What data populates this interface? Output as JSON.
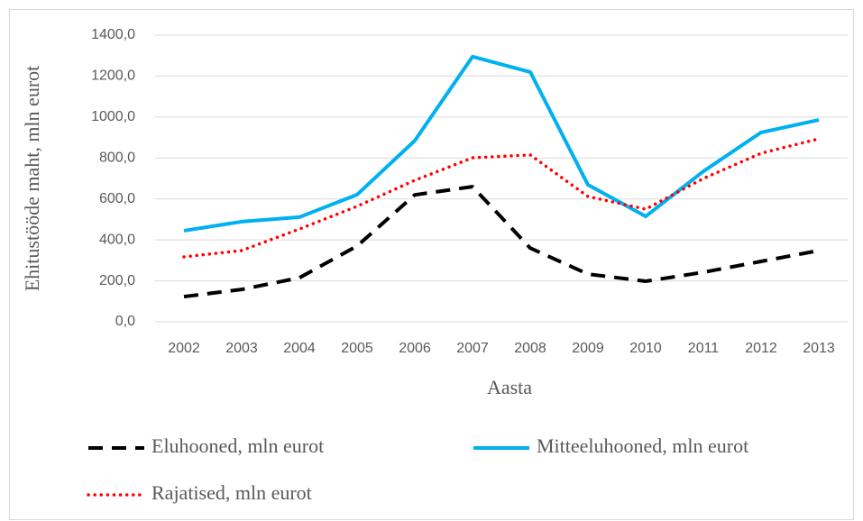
{
  "chart_data": {
    "type": "line",
    "x_label": "Aasta",
    "y_label": "Ehitustööde maht, mln eurot",
    "x": [
      2002,
      2003,
      2004,
      2005,
      2006,
      2007,
      2008,
      2009,
      2010,
      2011,
      2012,
      2013
    ],
    "series": [
      {
        "name": "Eluhooned, mln eurot",
        "color": "#000000",
        "style": "dashed",
        "values": [
          123,
          158,
          215,
          370,
          620,
          660,
          360,
          233,
          198,
          242,
          295,
          348
        ]
      },
      {
        "name": "Mitteeluhooned, mln eurot",
        "color": "#00b0f0",
        "style": "solid",
        "values": [
          445,
          489,
          511,
          621,
          885,
          1295,
          1220,
          669,
          515,
          735,
          925,
          986
        ]
      },
      {
        "name": "Rajatised, mln eurot",
        "color": "#ff0000",
        "style": "dotted",
        "values": [
          317,
          348,
          453,
          564,
          691,
          801,
          815,
          612,
          550,
          700,
          823,
          894
        ]
      }
    ],
    "ylim": [
      0,
      1400
    ],
    "yticks": [
      {
        "value": 0,
        "label": "0,0"
      },
      {
        "value": 200,
        "label": "200,0"
      },
      {
        "value": 400,
        "label": "400,0"
      },
      {
        "value": 600,
        "label": "600,0"
      },
      {
        "value": 800,
        "label": "800,0"
      },
      {
        "value": 1000,
        "label": "1000,0"
      },
      {
        "value": 1200,
        "label": "1200,0"
      },
      {
        "value": 1400,
        "label": "1400,0"
      }
    ],
    "grid": true,
    "legend": "bottom"
  }
}
